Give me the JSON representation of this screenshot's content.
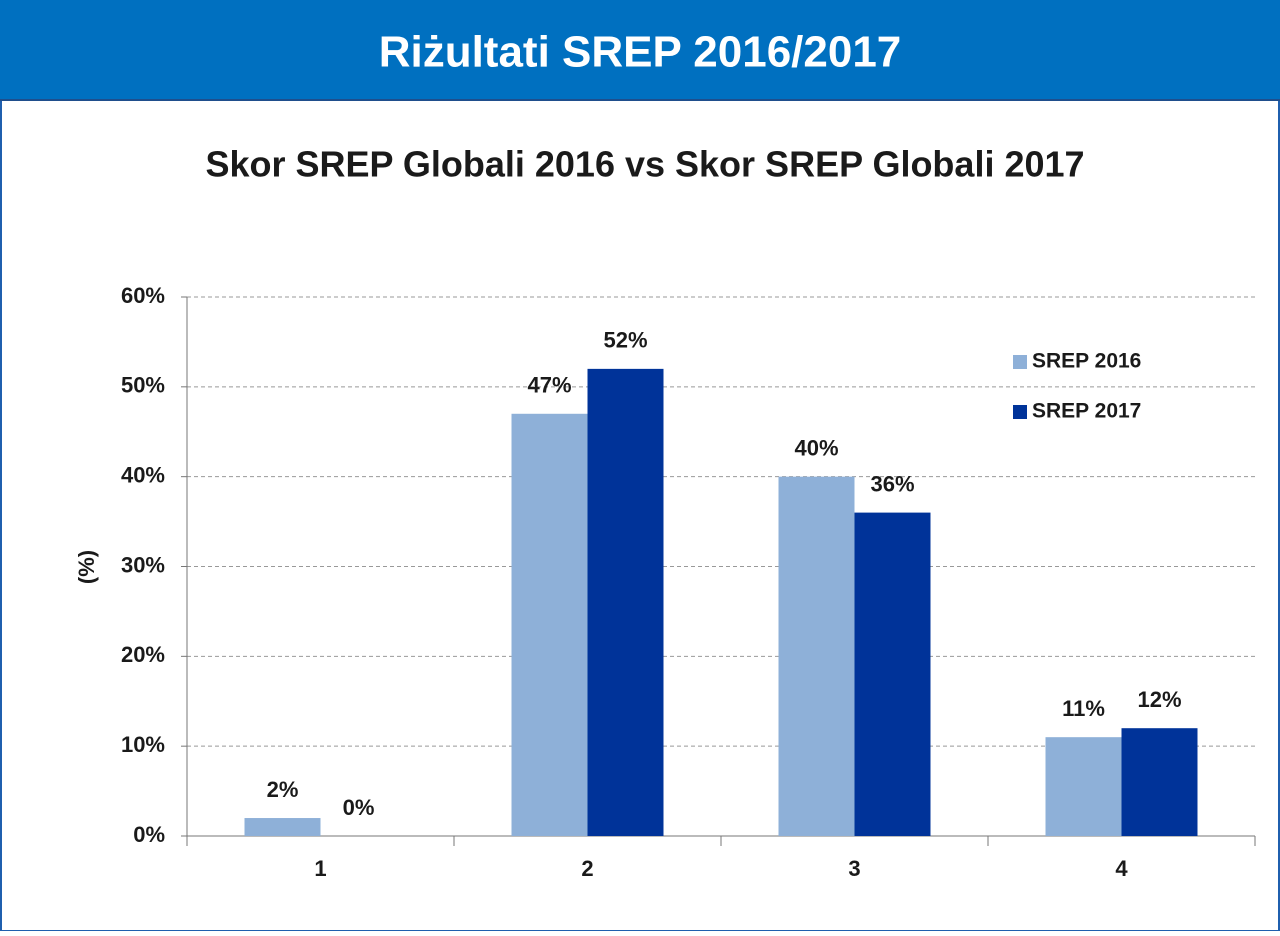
{
  "slide_title": "Riżultati SREP 2016/2017",
  "chart_data": {
    "type": "bar",
    "title": "Skor SREP Globali 2016 vs Skor SREP Globali 2017",
    "y_label": "(%)",
    "categories": [
      "1",
      "2",
      "3",
      "4"
    ],
    "series": [
      {
        "name": "SREP 2016",
        "color": "#8eb0d8",
        "values": [
          2,
          47,
          40,
          11
        ],
        "value_labels": [
          "2%",
          "47%",
          "40%",
          "11%"
        ]
      },
      {
        "name": "SREP 2017",
        "color": "#003399",
        "values": [
          0,
          52,
          36,
          12
        ],
        "value_labels": [
          "0%",
          "52%",
          "36%",
          "12%"
        ]
      }
    ],
    "ylim": [
      0,
      60
    ],
    "yticks": [
      {
        "value": 0,
        "label": "0%"
      },
      {
        "value": 10,
        "label": "10%"
      },
      {
        "value": 20,
        "label": "20%"
      },
      {
        "value": 30,
        "label": "30%"
      },
      {
        "value": 40,
        "label": "40%"
      },
      {
        "value": 50,
        "label": "50%"
      },
      {
        "value": 60,
        "label": "60%"
      }
    ],
    "grid": true,
    "legend": "upper right"
  }
}
